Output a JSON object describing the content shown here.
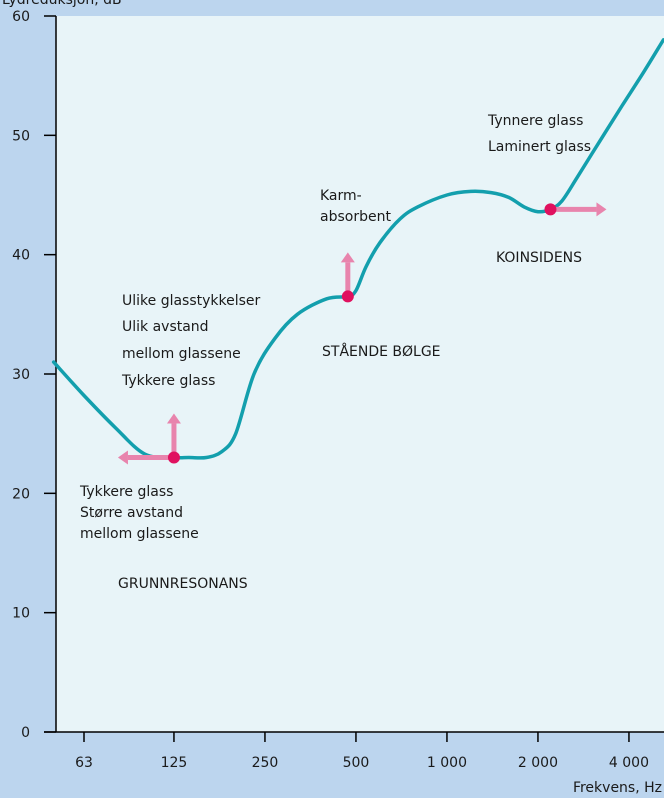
{
  "chart_data": {
    "type": "line",
    "ylabel": "Lydreduksjon, dB",
    "xlabel": "Frekvens, Hz",
    "ylim": [
      0,
      60
    ],
    "yticks": [
      0,
      10,
      20,
      30,
      40,
      50,
      60
    ],
    "x_scale": "log",
    "xticks": [
      "63",
      "125",
      "250",
      "500",
      "1 000",
      "2 000",
      "4 000"
    ],
    "grid": false,
    "series": [
      {
        "x": [
          50,
          63,
          80,
          100,
          125,
          140,
          160,
          180,
          200,
          230,
          270,
          320,
          400,
          470,
          500,
          540,
          600,
          700,
          800,
          1000,
          1200,
          1400,
          1600,
          1800,
          2000,
          2200,
          2400,
          2700,
          3200,
          3800,
          4500,
          5200
        ],
        "y": [
          31,
          28.2,
          25.5,
          23.3,
          23,
          23,
          23,
          23.5,
          25,
          30,
          33,
          35,
          36.3,
          36.5,
          37,
          39,
          41,
          43,
          44,
          45,
          45.3,
          45.2,
          44.8,
          44,
          43.6,
          43.8,
          44.5,
          46.5,
          49.5,
          52.5,
          55.4,
          58
        ]
      }
    ],
    "markers": [
      {
        "x": 125,
        "y": 23,
        "color": "#e0115f"
      },
      {
        "x": 470,
        "y": 36.5,
        "color": "#e0115f"
      },
      {
        "x": 2200,
        "y": 43.8,
        "color": "#e0115f"
      }
    ],
    "arrows": [
      {
        "from_x": 125,
        "from_y": 23,
        "direction": "up",
        "color": "#e884ad"
      },
      {
        "from_x": 125,
        "from_y": 23,
        "direction": "left",
        "color": "#e884ad"
      },
      {
        "from_x": 470,
        "from_y": 36.5,
        "direction": "up",
        "color": "#e884ad"
      },
      {
        "from_x": 2200,
        "from_y": 43.8,
        "direction": "right",
        "color": "#e884ad"
      }
    ],
    "annotations": {
      "left_lower": [
        "Tykkere glass",
        "Større avstand",
        "mellom glassene"
      ],
      "left_upper": [
        "Ulike glasstykkelser",
        "Ulik avstand",
        "mellom glassene",
        "Tykkere glass"
      ],
      "grunnresonans": "GRUNNRESONANS",
      "karm": [
        "Karm-",
        "absorbent"
      ],
      "staende": "STÅENDE BØLGE",
      "tynnere": [
        "Tynnere glass",
        "Laminert glass"
      ],
      "koinsidens": "KOINSIDENS"
    },
    "colors": {
      "plot_bg": "#e8f4f8",
      "outer_bg": "#bcd5ee",
      "line": "#139fad",
      "marker": "#e0115f",
      "arrow": "#e884ad",
      "axis": "#000000"
    }
  }
}
